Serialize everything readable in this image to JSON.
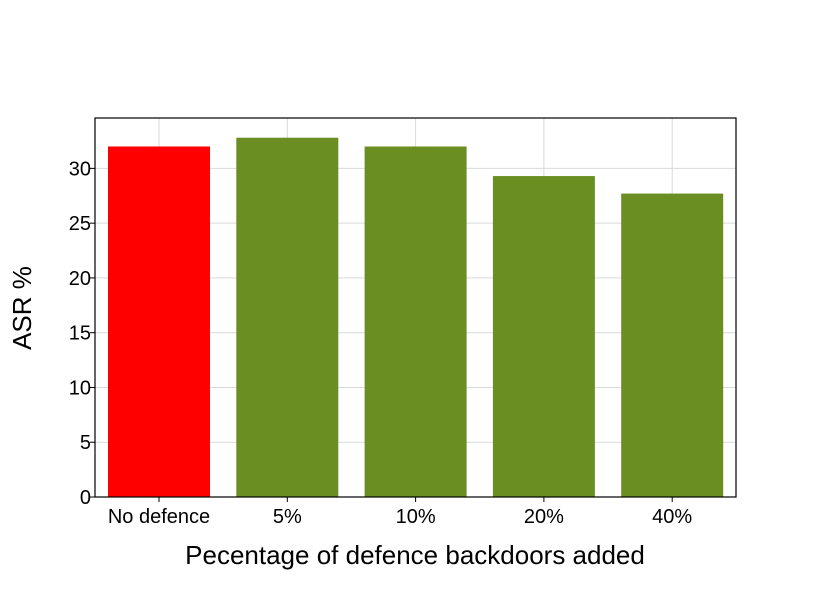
{
  "chart_data": {
    "type": "bar",
    "categories": [
      "No defence",
      "5%",
      "10%",
      "20%",
      "40%"
    ],
    "values": [
      32.0,
      32.8,
      32.0,
      29.3,
      27.7
    ],
    "bar_colors": [
      "#ff0000",
      "#6b8e23",
      "#6b8e23",
      "#6b8e23",
      "#6b8e23"
    ],
    "xlabel": "Pecentage of defence backdoors added",
    "ylabel": "ASR %",
    "ylim": [
      0,
      34.6
    ],
    "yticks": [
      0,
      5,
      10,
      15,
      20,
      25,
      30
    ],
    "grid": true
  }
}
